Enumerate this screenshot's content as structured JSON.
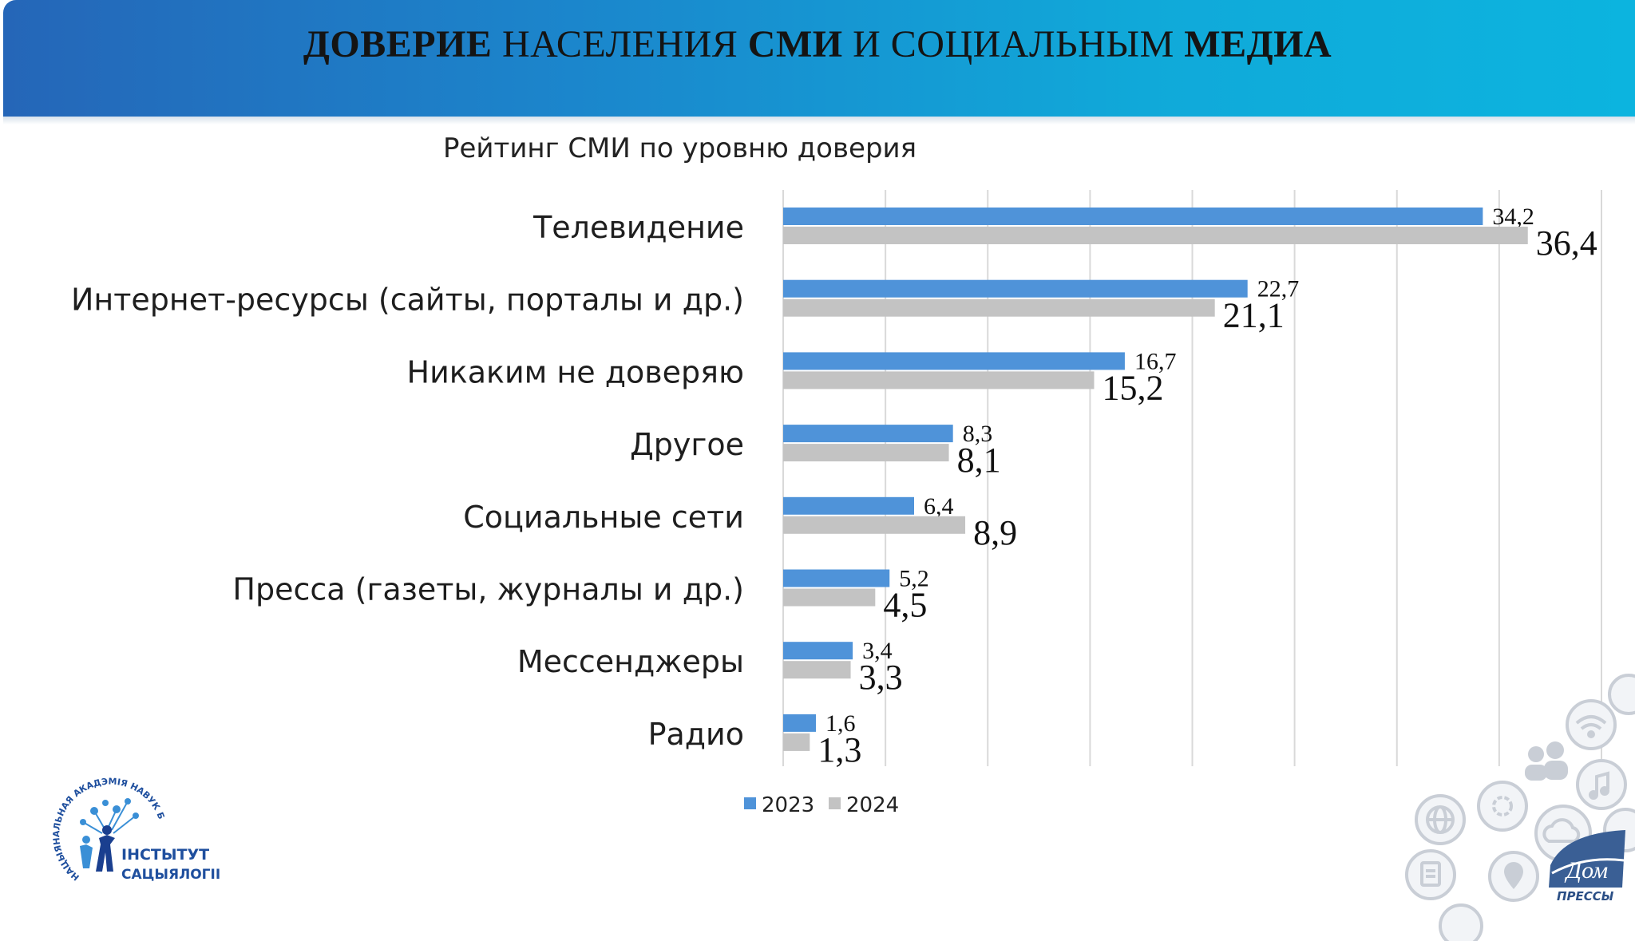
{
  "banner": {
    "title_parts": [
      {
        "text": "ДОВЕРИЕ",
        "bold": true
      },
      {
        "text": " НАСЕЛЕНИЯ ",
        "bold": false
      },
      {
        "text": "СМИ",
        "bold": true
      },
      {
        "text": " И СОЦИАЛЬНЫМ ",
        "bold": false
      },
      {
        "text": "МЕДИА",
        "bold": true
      }
    ]
  },
  "chart_data": {
    "type": "bar",
    "orientation": "horizontal",
    "title": "Рейтинг СМИ по уровню доверия",
    "categories": [
      "Телевидение",
      "Интернет-ресурсы (сайты, порталы и др.)",
      "Никаким не доверяю",
      "Другое",
      "Социальные сети",
      "Пресса (газеты, журналы и др.)",
      "Мессенджеры",
      "Радио"
    ],
    "series": [
      {
        "name": "2023",
        "color": "#4f93d9",
        "values": [
          34.2,
          22.7,
          16.7,
          8.3,
          6.4,
          5.2,
          3.4,
          1.6
        ],
        "labels": [
          "34,2",
          "22,7",
          "16,7",
          "8,3",
          "6,4",
          "5,2",
          "3,4",
          "1,6"
        ]
      },
      {
        "name": "2024",
        "color": "#c3c3c3",
        "values": [
          36.4,
          21.1,
          15.2,
          8.1,
          8.9,
          4.5,
          3.3,
          1.3
        ],
        "labels": [
          "36,4",
          "21,1",
          "15,2",
          "8,1",
          "8,9",
          "4,5",
          "3,3",
          "1,3"
        ]
      }
    ],
    "xlim": [
      0,
      40
    ],
    "grid": true,
    "gridlines_every": 5,
    "legend": "bottom"
  },
  "logos": {
    "institute": {
      "line1": "ІНСТЫТУТ",
      "line2": "САЦЫЯЛОГІІ",
      "ring": "НАЦЫЯНАЛЬНАЯ АКАДЭМІЯ НАВУК БЕЛАРУСІ"
    },
    "press_house": {
      "mark": "Дом",
      "caption": "ПРЕССЫ"
    }
  },
  "decor_icons": [
    "globe-icon",
    "gear-icon",
    "people-icon",
    "wifi-icon",
    "music-icon",
    "document-icon",
    "location-pin-icon",
    "cloud-icon"
  ]
}
